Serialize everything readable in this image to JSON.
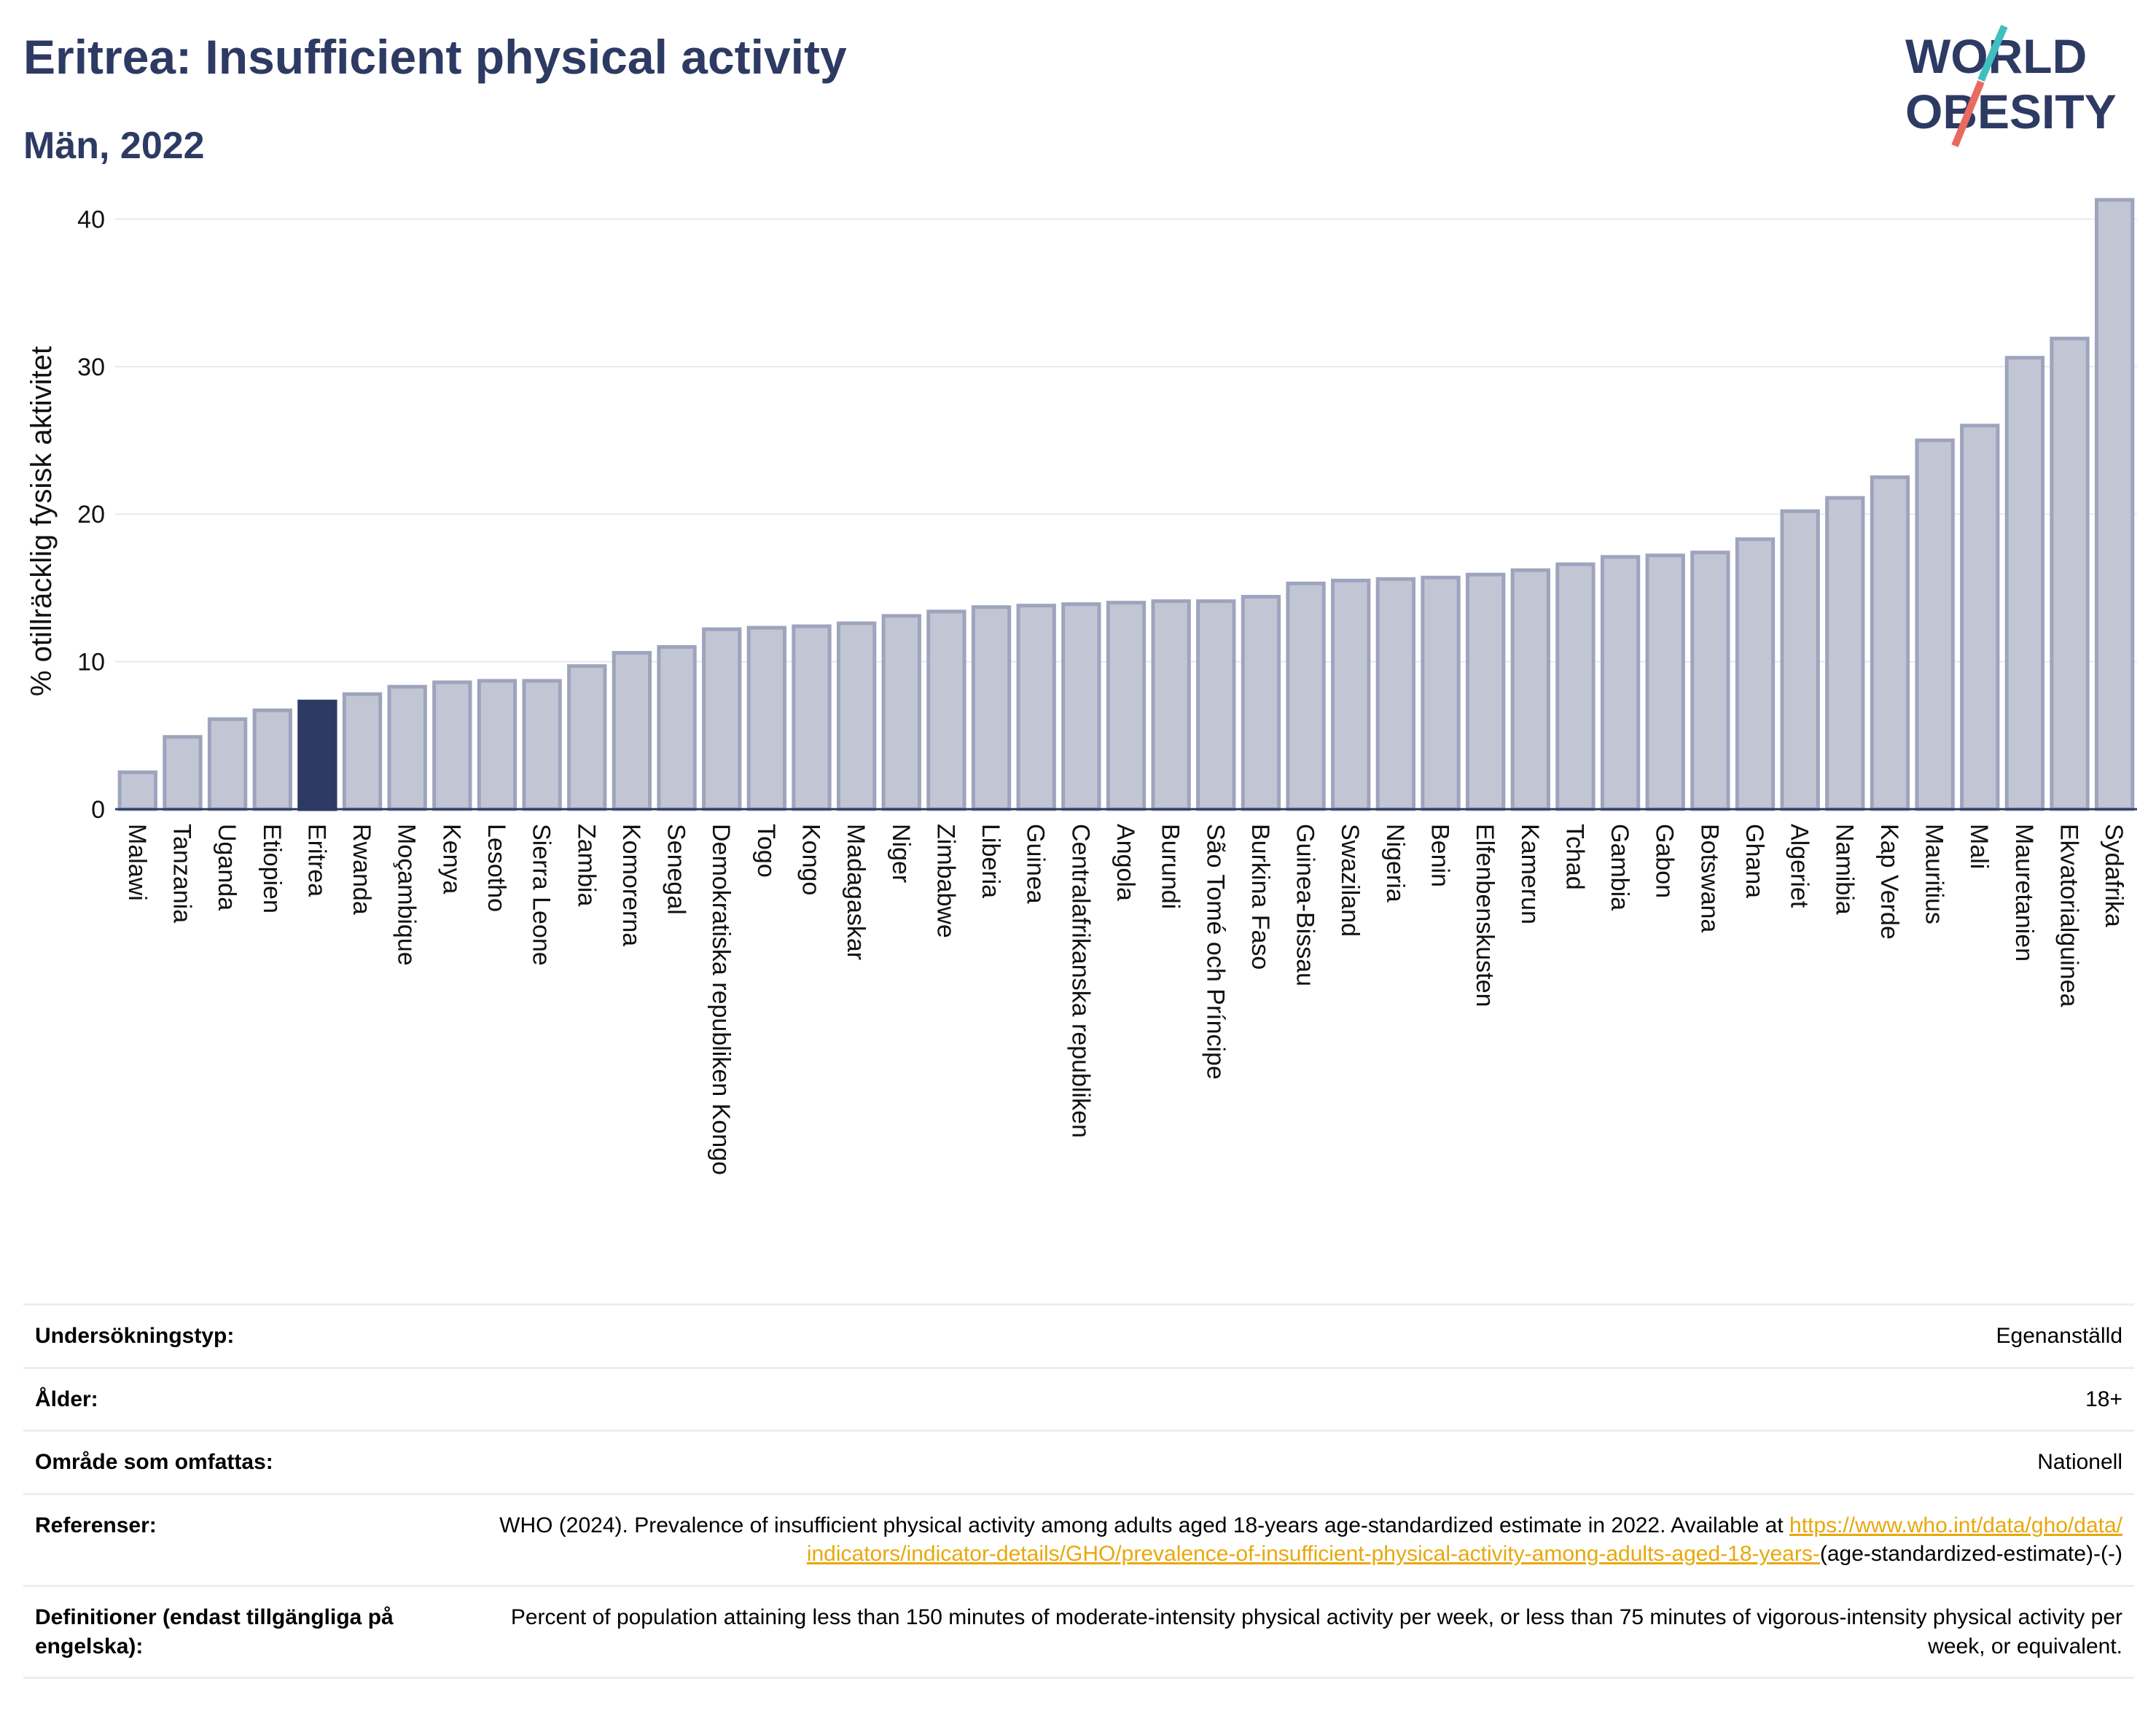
{
  "title": "Eritrea: Insufficient physical activity",
  "subtitle": "Män, 2022",
  "logo": {
    "line1": "WORLD",
    "line2": "OBESITY",
    "accent_teal": "#3fbfbf",
    "accent_red": "#e86b5f"
  },
  "colors": {
    "bar": "#c2c6d4",
    "bar_edge": "#9ea4bd",
    "highlight": "#2d3a63",
    "grid": "#e7e9ef"
  },
  "chart_data": {
    "type": "bar",
    "ylabel": "% otillräcklig fysisk aktivitet",
    "ylim": [
      0,
      42
    ],
    "yticks": [
      0,
      10,
      20,
      30,
      40
    ],
    "highlight": "Eritrea",
    "categories": [
      "Malawi",
      "Tanzania",
      "Uganda",
      "Etiopien",
      "Eritrea",
      "Rwanda",
      "Moçambique",
      "Kenya",
      "Lesotho",
      "Sierra Leone",
      "Zambia",
      "Komorerna",
      "Senegal",
      "Demokratiska republiken Kongo",
      "Togo",
      "Kongo",
      "Madagaskar",
      "Niger",
      "Zimbabwe",
      "Liberia",
      "Guinea",
      "Centralafrikanska republiken",
      "Angola",
      "Burundi",
      "São Tomé och Príncipe",
      "Burkina Faso",
      "Guinea-Bissau",
      "Swaziland",
      "Nigeria",
      "Benin",
      "Elfenbenskusten",
      "Kamerun",
      "Tchad",
      "Gambia",
      "Gabon",
      "Botswana",
      "Ghana",
      "Algeriet",
      "Namibia",
      "Kap Verde",
      "Mauritius",
      "Mali",
      "Mauretanien",
      "Ekvatorialguinea",
      "Sydafrika"
    ],
    "values": [
      2.5,
      4.9,
      6.1,
      6.7,
      7.3,
      7.8,
      8.3,
      8.6,
      8.7,
      8.7,
      9.7,
      10.6,
      11.0,
      12.2,
      12.3,
      12.4,
      12.6,
      13.1,
      13.4,
      13.7,
      13.8,
      13.9,
      14.0,
      14.1,
      14.1,
      14.4,
      15.3,
      15.5,
      15.6,
      15.7,
      15.9,
      16.2,
      16.6,
      17.1,
      17.2,
      17.4,
      18.3,
      20.2,
      21.1,
      22.5,
      25.0,
      26.0,
      30.6,
      31.9,
      41.3
    ]
  },
  "meta": [
    {
      "key": "Undersökningstyp:",
      "value": "Egenanställd"
    },
    {
      "key": "Ålder:",
      "value": "18+"
    },
    {
      "key": "Område som omfattas:",
      "value": "Nationell"
    },
    {
      "key": "Referenser:",
      "value": "WHO (2024). Prevalence of insufficient physical activity among adults aged 18-years age-standardized estimate in 2022. Available at",
      "link": "https://www.who.int/data/gho/data/indicators/indicator-details/GHO/prevalence-of-insufficient-physical-activity-among-adults-aged-18-years-",
      "suffix": "(age-standardized-estimate)-(-)"
    },
    {
      "key": "Definitioner (endast tillgängliga på engelska):",
      "value": "Percent of population attaining less than 150 minutes of moderate-intensity physical activity per week, or less than 75 minutes of vigorous-intensity physical activity per week, or equivalent."
    }
  ]
}
